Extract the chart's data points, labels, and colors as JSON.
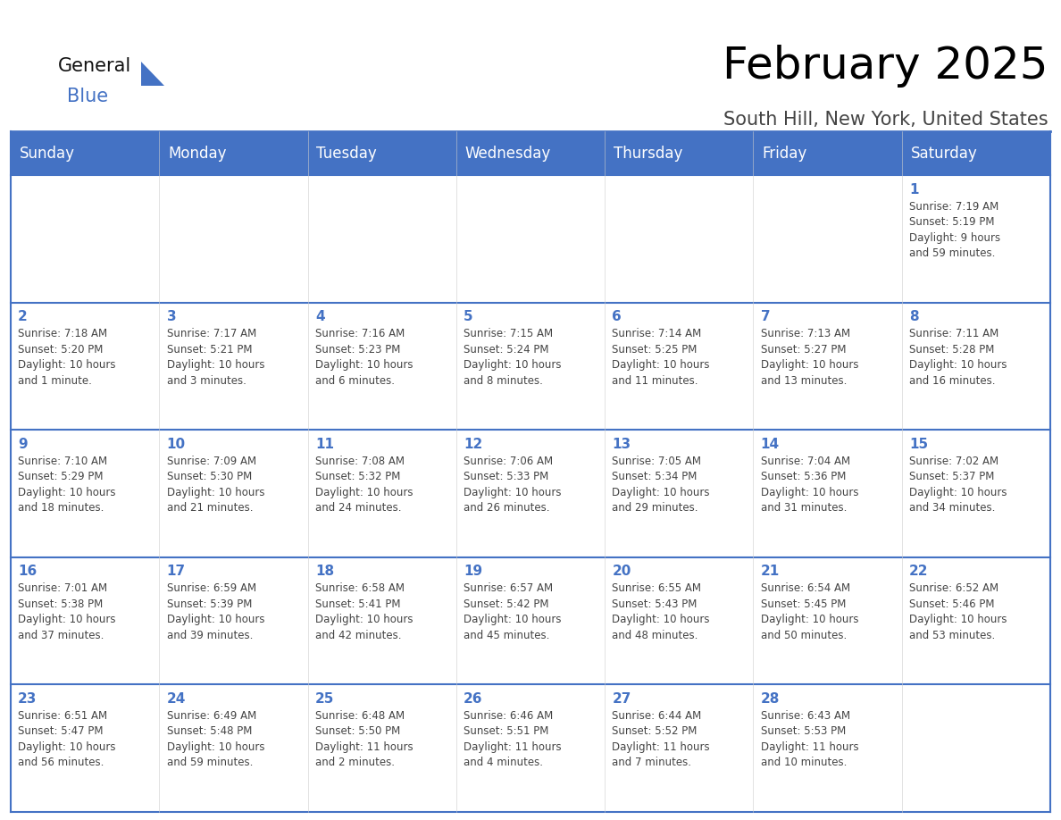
{
  "title": "February 2025",
  "subtitle": "South Hill, New York, United States",
  "header_color": "#4472C4",
  "header_text_color": "#FFFFFF",
  "cell_bg_color": "#FFFFFF",
  "border_color": "#4472C4",
  "line_color": "#AAAAAA",
  "day_headers": [
    "Sunday",
    "Monday",
    "Tuesday",
    "Wednesday",
    "Thursday",
    "Friday",
    "Saturday"
  ],
  "title_fontsize": 36,
  "subtitle_fontsize": 15,
  "day_header_fontsize": 12,
  "date_fontsize": 11,
  "content_fontsize": 8.5,
  "weeks": [
    [
      {
        "day": null,
        "info": ""
      },
      {
        "day": null,
        "info": ""
      },
      {
        "day": null,
        "info": ""
      },
      {
        "day": null,
        "info": ""
      },
      {
        "day": null,
        "info": ""
      },
      {
        "day": null,
        "info": ""
      },
      {
        "day": 1,
        "info": "Sunrise: 7:19 AM\nSunset: 5:19 PM\nDaylight: 9 hours\nand 59 minutes."
      }
    ],
    [
      {
        "day": 2,
        "info": "Sunrise: 7:18 AM\nSunset: 5:20 PM\nDaylight: 10 hours\nand 1 minute."
      },
      {
        "day": 3,
        "info": "Sunrise: 7:17 AM\nSunset: 5:21 PM\nDaylight: 10 hours\nand 3 minutes."
      },
      {
        "day": 4,
        "info": "Sunrise: 7:16 AM\nSunset: 5:23 PM\nDaylight: 10 hours\nand 6 minutes."
      },
      {
        "day": 5,
        "info": "Sunrise: 7:15 AM\nSunset: 5:24 PM\nDaylight: 10 hours\nand 8 minutes."
      },
      {
        "day": 6,
        "info": "Sunrise: 7:14 AM\nSunset: 5:25 PM\nDaylight: 10 hours\nand 11 minutes."
      },
      {
        "day": 7,
        "info": "Sunrise: 7:13 AM\nSunset: 5:27 PM\nDaylight: 10 hours\nand 13 minutes."
      },
      {
        "day": 8,
        "info": "Sunrise: 7:11 AM\nSunset: 5:28 PM\nDaylight: 10 hours\nand 16 minutes."
      }
    ],
    [
      {
        "day": 9,
        "info": "Sunrise: 7:10 AM\nSunset: 5:29 PM\nDaylight: 10 hours\nand 18 minutes."
      },
      {
        "day": 10,
        "info": "Sunrise: 7:09 AM\nSunset: 5:30 PM\nDaylight: 10 hours\nand 21 minutes."
      },
      {
        "day": 11,
        "info": "Sunrise: 7:08 AM\nSunset: 5:32 PM\nDaylight: 10 hours\nand 24 minutes."
      },
      {
        "day": 12,
        "info": "Sunrise: 7:06 AM\nSunset: 5:33 PM\nDaylight: 10 hours\nand 26 minutes."
      },
      {
        "day": 13,
        "info": "Sunrise: 7:05 AM\nSunset: 5:34 PM\nDaylight: 10 hours\nand 29 minutes."
      },
      {
        "day": 14,
        "info": "Sunrise: 7:04 AM\nSunset: 5:36 PM\nDaylight: 10 hours\nand 31 minutes."
      },
      {
        "day": 15,
        "info": "Sunrise: 7:02 AM\nSunset: 5:37 PM\nDaylight: 10 hours\nand 34 minutes."
      }
    ],
    [
      {
        "day": 16,
        "info": "Sunrise: 7:01 AM\nSunset: 5:38 PM\nDaylight: 10 hours\nand 37 minutes."
      },
      {
        "day": 17,
        "info": "Sunrise: 6:59 AM\nSunset: 5:39 PM\nDaylight: 10 hours\nand 39 minutes."
      },
      {
        "day": 18,
        "info": "Sunrise: 6:58 AM\nSunset: 5:41 PM\nDaylight: 10 hours\nand 42 minutes."
      },
      {
        "day": 19,
        "info": "Sunrise: 6:57 AM\nSunset: 5:42 PM\nDaylight: 10 hours\nand 45 minutes."
      },
      {
        "day": 20,
        "info": "Sunrise: 6:55 AM\nSunset: 5:43 PM\nDaylight: 10 hours\nand 48 minutes."
      },
      {
        "day": 21,
        "info": "Sunrise: 6:54 AM\nSunset: 5:45 PM\nDaylight: 10 hours\nand 50 minutes."
      },
      {
        "day": 22,
        "info": "Sunrise: 6:52 AM\nSunset: 5:46 PM\nDaylight: 10 hours\nand 53 minutes."
      }
    ],
    [
      {
        "day": 23,
        "info": "Sunrise: 6:51 AM\nSunset: 5:47 PM\nDaylight: 10 hours\nand 56 minutes."
      },
      {
        "day": 24,
        "info": "Sunrise: 6:49 AM\nSunset: 5:48 PM\nDaylight: 10 hours\nand 59 minutes."
      },
      {
        "day": 25,
        "info": "Sunrise: 6:48 AM\nSunset: 5:50 PM\nDaylight: 11 hours\nand 2 minutes."
      },
      {
        "day": 26,
        "info": "Sunrise: 6:46 AM\nSunset: 5:51 PM\nDaylight: 11 hours\nand 4 minutes."
      },
      {
        "day": 27,
        "info": "Sunrise: 6:44 AM\nSunset: 5:52 PM\nDaylight: 11 hours\nand 7 minutes."
      },
      {
        "day": 28,
        "info": "Sunrise: 6:43 AM\nSunset: 5:53 PM\nDaylight: 11 hours\nand 10 minutes."
      },
      {
        "day": null,
        "info": ""
      }
    ]
  ]
}
